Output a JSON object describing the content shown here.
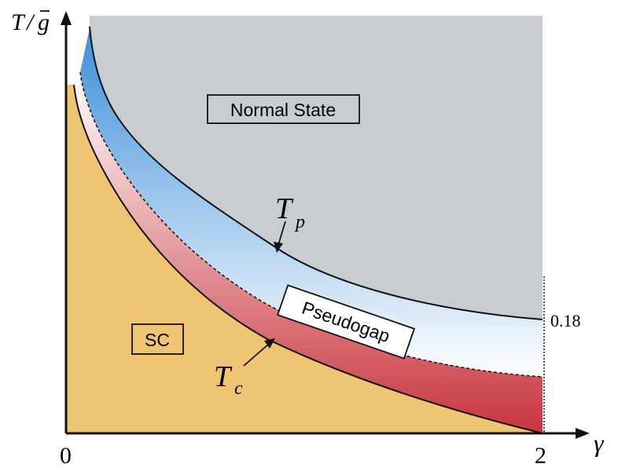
{
  "axes": {
    "y_label_T": "T",
    "y_label_slash": "/",
    "y_label_g": "g",
    "x_label": "γ",
    "x_tick_0": "0",
    "x_tick_2": "2",
    "y_value_label": "0.18"
  },
  "regions": {
    "normal_state": "Normal State",
    "superconducting": "SC",
    "pseudogap": "Pseudogap"
  },
  "curves": {
    "tp_main": "T",
    "tp_sub": "p",
    "tc_main": "T",
    "tc_sub": "c"
  },
  "colors": {
    "normal": "#c8cdd2",
    "sc": "#efc574",
    "pseudogap_upper": "#3d8fd9",
    "pseudogap_lower": "#c9343d"
  }
}
